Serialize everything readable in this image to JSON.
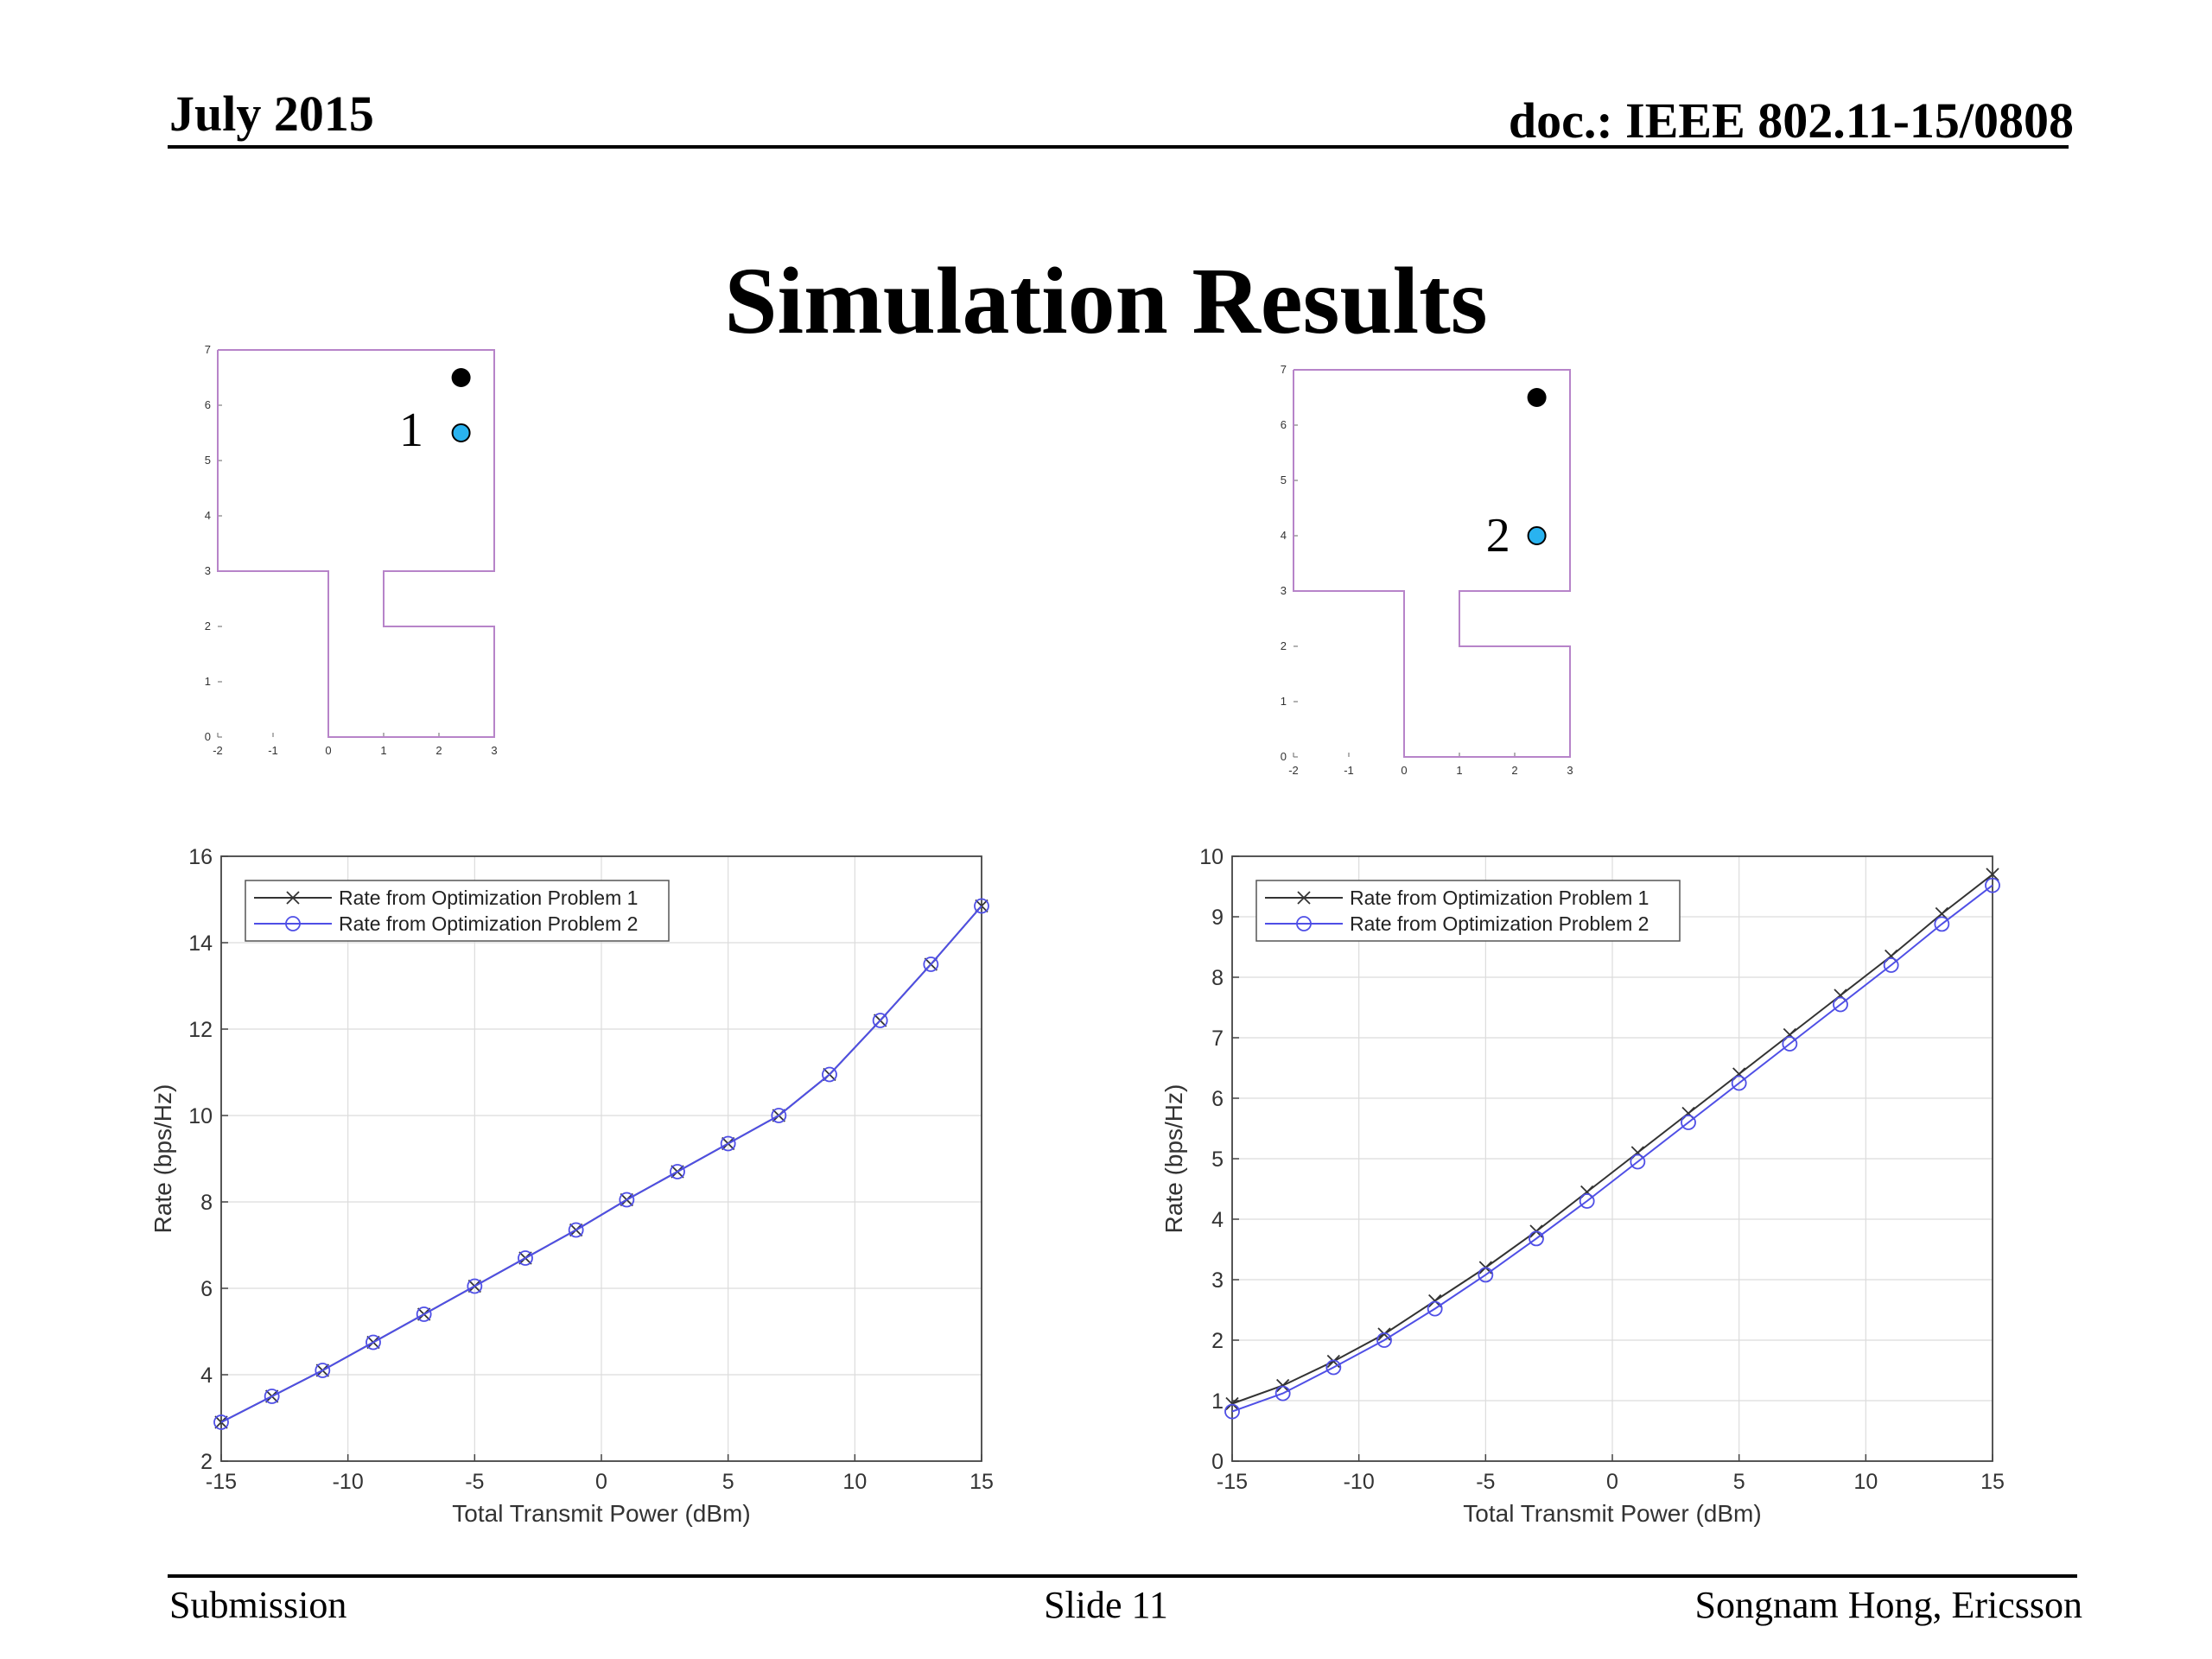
{
  "header": {
    "date": "July 2015",
    "doc": "doc.: IEEE 802.11-15/0808"
  },
  "title": "Simulation Results",
  "footer": {
    "left": "Submission",
    "center": "Slide 11",
    "right": "Songnam Hong, Ericsson"
  },
  "floorplans": [
    {
      "label": "1",
      "xticks": [
        -2,
        -1,
        0,
        1,
        2,
        3
      ],
      "yticks": [
        0,
        1,
        2,
        3,
        4,
        5,
        6,
        7
      ],
      "outline": [
        [
          -2,
          7
        ],
        [
          3,
          7
        ],
        [
          3,
          3
        ],
        [
          1,
          3
        ],
        [
          1,
          2
        ],
        [
          3,
          2
        ],
        [
          3,
          0
        ],
        [
          0,
          0
        ],
        [
          0,
          3
        ],
        [
          -2,
          3
        ],
        [
          -2,
          7
        ]
      ],
      "ap": [
        2.4,
        6.5
      ],
      "sta": [
        2.4,
        5.5
      ],
      "label_pos": [
        1.5,
        5.55
      ],
      "colors": {
        "outline": "#b784c9",
        "ap": "#000000",
        "sta": "#29b3f0"
      }
    },
    {
      "label": "2",
      "xticks": [
        -2,
        -1,
        0,
        1,
        2,
        3
      ],
      "yticks": [
        0,
        1,
        2,
        3,
        4,
        5,
        6,
        7
      ],
      "outline": [
        [
          -2,
          7
        ],
        [
          3,
          7
        ],
        [
          3,
          3
        ],
        [
          1,
          3
        ],
        [
          1,
          2
        ],
        [
          3,
          2
        ],
        [
          3,
          0
        ],
        [
          0,
          0
        ],
        [
          0,
          3
        ],
        [
          -2,
          3
        ],
        [
          -2,
          7
        ]
      ],
      "ap": [
        2.4,
        6.5
      ],
      "sta": [
        2.4,
        4.0
      ],
      "label_pos": [
        1.7,
        4.0
      ],
      "colors": {
        "outline": "#b784c9",
        "ap": "#000000",
        "sta": "#29b3f0"
      }
    }
  ],
  "chart_data": [
    {
      "type": "line",
      "xlabel": "Total Transmit Power (dBm)",
      "ylabel": "Rate (bps/Hz)",
      "xlim": [
        -15,
        15
      ],
      "ylim": [
        2,
        16
      ],
      "xticks": [
        -15,
        -10,
        -5,
        0,
        5,
        10,
        15
      ],
      "yticks": [
        2,
        4,
        6,
        8,
        10,
        12,
        14,
        16
      ],
      "grid": true,
      "legend_position": "top-left",
      "x": [
        -15,
        -13,
        -11,
        -9,
        -7,
        -5,
        -3,
        -1,
        1,
        3,
        5,
        7,
        9,
        11,
        13,
        15
      ],
      "series": [
        {
          "name": "Rate from Optimization Problem 1",
          "marker": "x",
          "color": "#333333",
          "values": [
            2.9,
            3.5,
            4.1,
            4.75,
            5.4,
            6.05,
            6.7,
            7.35,
            8.05,
            8.7,
            9.35,
            10.0,
            10.95,
            12.2,
            13.5,
            14.85
          ]
        },
        {
          "name": "Rate from Optimization Problem 2",
          "marker": "o",
          "color": "#4f4fe6",
          "values": [
            2.9,
            3.5,
            4.1,
            4.75,
            5.4,
            6.05,
            6.7,
            7.35,
            8.05,
            8.7,
            9.35,
            10.0,
            10.95,
            12.2,
            13.5,
            14.85
          ]
        }
      ]
    },
    {
      "type": "line",
      "xlabel": "Total Transmit Power (dBm)",
      "ylabel": "Rate (bps/Hz)",
      "xlim": [
        -15,
        15
      ],
      "ylim": [
        0,
        10
      ],
      "xticks": [
        -15,
        -10,
        -5,
        0,
        5,
        10,
        15
      ],
      "yticks": [
        0,
        1,
        2,
        3,
        4,
        5,
        6,
        7,
        8,
        9,
        10
      ],
      "grid": true,
      "legend_position": "top-left",
      "x": [
        -15,
        -13,
        -11,
        -9,
        -7,
        -5,
        -3,
        -1,
        1,
        3,
        5,
        7,
        9,
        11,
        13,
        15
      ],
      "series": [
        {
          "name": "Rate from Optimization Problem 1",
          "marker": "x",
          "color": "#333333",
          "values": [
            0.95,
            1.25,
            1.65,
            2.1,
            2.65,
            3.2,
            3.8,
            4.45,
            5.1,
            5.75,
            6.4,
            7.05,
            7.7,
            8.35,
            9.05,
            9.7
          ]
        },
        {
          "name": "Rate from Optimization Problem 2",
          "marker": "o",
          "color": "#4f4fe6",
          "values": [
            0.82,
            1.12,
            1.55,
            2.0,
            2.52,
            3.08,
            3.68,
            4.3,
            4.95,
            5.6,
            6.25,
            6.9,
            7.55,
            8.2,
            8.88,
            9.52
          ]
        }
      ]
    }
  ]
}
